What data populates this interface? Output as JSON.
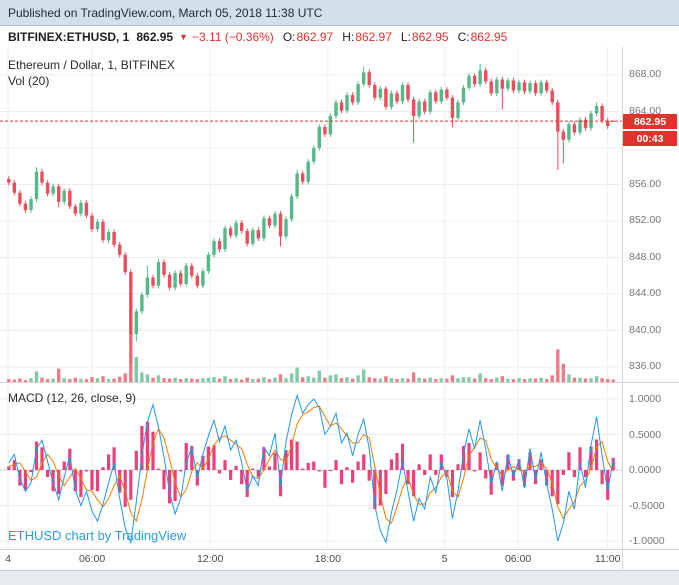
{
  "banner": {
    "text": "Published on TradingView.com, March 05, 2018 11:38 UTC"
  },
  "symbol_bar": {
    "symbol": "BITFINEX:ETHUSD, 1",
    "last": "862.95",
    "direction_icon": "▼",
    "change": "−3.11 (−0.36%)",
    "ohlc": [
      {
        "label": "O:",
        "value": "862.97"
      },
      {
        "label": "H:",
        "value": "862.97"
      },
      {
        "label": "L:",
        "value": "862.95"
      },
      {
        "label": "C:",
        "value": "862.95"
      }
    ]
  },
  "legend": {
    "title": "Ethereum / Dollar, 1, BITFINEX",
    "volume": "Vol (20)"
  },
  "macd_label": "MACD (12, 26, close, 9)",
  "watermark": "ETHUSD chart by TradingView",
  "price_axis": {
    "last_price": "862.95",
    "countdown": "00:43",
    "tick_labels": [
      {
        "v": 868,
        "t": "868.00"
      },
      {
        "v": 864,
        "t": "864.00"
      },
      {
        "v": 856,
        "t": "856.00"
      },
      {
        "v": 852,
        "t": "852.00"
      },
      {
        "v": 848,
        "t": "848.00"
      },
      {
        "v": 844,
        "t": "844.00"
      },
      {
        "v": 840,
        "t": "840.00"
      },
      {
        "v": 836,
        "t": "836.00"
      }
    ]
  },
  "macd_axis": [
    {
      "v": 1.0,
      "t": "1.0000"
    },
    {
      "v": 0.5,
      "t": "0.5000"
    },
    {
      "v": 0.0,
      "t": "0.0000"
    },
    {
      "v": -0.5,
      "t": "-0.5000"
    },
    {
      "v": -1.0,
      "t": "-1.0000"
    }
  ],
  "time_axis": [
    {
      "label": "4",
      "f": 0.013
    },
    {
      "label": "06:00",
      "f": 0.148
    },
    {
      "label": "12:00",
      "f": 0.338
    },
    {
      "label": "18:00",
      "f": 0.527
    },
    {
      "label": "5",
      "f": 0.715
    },
    {
      "label": "06:00",
      "f": 0.833
    },
    {
      "label": "11:00",
      "f": 0.977
    }
  ],
  "colors": {
    "up": "#53b987",
    "down": "#eb4d5c",
    "grid": "#ececec",
    "accent_red": "#e0332c",
    "macd_line": "#2196f3",
    "signal_line": "#f57c00",
    "hist": "#e91e63",
    "zero_line": "#c0c0c0"
  },
  "chart_data": {
    "type": "candlestick",
    "title": "Ethereum / Dollar, 1, BITFINEX",
    "exchange": "BITFINEX",
    "interval_minutes": 1,
    "current_price": 862.95,
    "price_range": [
      836,
      868
    ],
    "grid_prices": [
      868,
      864,
      860,
      856,
      852,
      848,
      844,
      840,
      836
    ],
    "macd_range": [
      -1,
      1
    ],
    "candles": {
      "o": [
        856.6,
        856.2,
        855.1,
        853.9,
        853.2,
        854.4,
        857.4,
        856.2,
        855.0,
        855.8,
        854.1,
        855.3,
        853.6,
        852.8,
        854.0,
        852.6,
        851.1,
        851.9,
        849.9,
        850.8,
        849.4,
        848.3,
        846.4,
        839.6,
        842.1,
        843.9,
        845.8,
        844.9,
        847.5,
        846.1,
        844.7,
        846.3,
        845.1,
        847.1,
        846.0,
        844.9,
        846.5,
        848.3,
        849.8,
        848.9,
        851.2,
        850.4,
        851.8,
        850.9,
        849.5,
        851.0,
        850.1,
        852.3,
        851.5,
        852.8,
        850.3,
        852.2,
        854.7,
        857.2,
        856.3,
        858.5,
        860.0,
        862.3,
        861.5,
        863.5,
        865.0,
        864.1,
        865.8,
        865.0,
        867.0,
        868.3,
        866.9,
        865.5,
        866.5,
        864.5,
        866.0,
        865.1,
        866.9,
        865.3,
        863.5,
        865.1,
        864.0,
        866.1,
        865.1,
        866.4,
        865.5,
        863.3,
        865.0,
        866.6,
        867.9,
        867.0,
        868.5,
        867.3,
        866.0,
        867.5,
        866.5,
        867.4,
        866.3,
        867.2,
        866.2,
        867.1,
        866.0,
        867.2,
        866.3,
        865.0,
        861.8,
        860.9,
        862.6,
        861.7,
        863.1,
        862.2,
        863.8,
        864.6,
        863.0,
        862.97
      ],
      "h": [
        856.9,
        856.5,
        855.4,
        854.2,
        854.7,
        857.9,
        857.7,
        856.5,
        856.1,
        856.1,
        855.6,
        855.6,
        853.9,
        854.3,
        854.3,
        852.9,
        852.2,
        852.2,
        851.1,
        851.1,
        849.7,
        848.6,
        846.7,
        842.4,
        844.2,
        847.1,
        846.1,
        847.8,
        847.8,
        846.4,
        846.6,
        846.6,
        847.4,
        847.4,
        846.3,
        846.8,
        848.6,
        850.1,
        850.1,
        851.5,
        851.5,
        852.1,
        852.1,
        851.2,
        851.3,
        851.3,
        852.6,
        852.6,
        853.1,
        853.1,
        852.5,
        855.0,
        857.6,
        857.5,
        858.8,
        860.3,
        862.6,
        862.6,
        863.8,
        865.3,
        865.3,
        866.1,
        866.1,
        867.3,
        868.9,
        868.6,
        867.2,
        866.8,
        866.8,
        866.3,
        866.3,
        867.2,
        867.2,
        865.6,
        865.4,
        865.4,
        866.4,
        866.4,
        866.7,
        866.7,
        865.8,
        865.3,
        866.9,
        868.2,
        868.2,
        869.2,
        868.8,
        867.6,
        867.8,
        867.8,
        867.7,
        867.7,
        867.5,
        867.5,
        867.4,
        867.4,
        867.5,
        867.5,
        866.6,
        865.3,
        862.1,
        862.9,
        862.9,
        863.4,
        863.4,
        864.1,
        865.0,
        864.9,
        863.3,
        863.0
      ],
      "l": [
        855.9,
        854.8,
        853.6,
        852.9,
        852.9,
        854.1,
        855.9,
        854.7,
        854.7,
        853.5,
        853.8,
        853.3,
        852.5,
        852.5,
        852.3,
        850.8,
        850.8,
        849.6,
        849.6,
        849.1,
        848.0,
        846.1,
        836.3,
        838.8,
        841.8,
        843.6,
        844.6,
        844.6,
        845.8,
        844.4,
        844.4,
        844.8,
        844.8,
        845.7,
        844.6,
        844.6,
        846.2,
        848.0,
        848.6,
        848.6,
        850.1,
        850.1,
        850.6,
        849.2,
        849.2,
        849.8,
        849.8,
        851.2,
        851.2,
        849.2,
        850.0,
        851.9,
        854.4,
        856.0,
        856.0,
        858.2,
        859.7,
        861.2,
        861.2,
        863.2,
        863.8,
        863.8,
        864.7,
        864.7,
        866.7,
        866.6,
        865.2,
        865.2,
        864.2,
        864.2,
        864.8,
        864.8,
        865.0,
        860.6,
        863.2,
        863.7,
        863.7,
        864.8,
        864.8,
        865.2,
        862.3,
        863.0,
        864.7,
        866.3,
        866.7,
        866.7,
        867.0,
        865.7,
        865.7,
        864.2,
        866.2,
        866.0,
        866.0,
        865.9,
        865.9,
        865.7,
        865.7,
        866.0,
        864.7,
        857.6,
        858.3,
        860.6,
        861.4,
        861.4,
        861.9,
        861.9,
        863.5,
        862.7,
        862.1,
        862.9
      ],
      "c": [
        856.2,
        855.1,
        853.9,
        853.2,
        854.4,
        857.4,
        856.2,
        855.0,
        855.8,
        854.1,
        855.3,
        853.6,
        852.8,
        854.0,
        852.6,
        851.1,
        851.9,
        849.9,
        850.8,
        849.4,
        848.3,
        846.4,
        839.6,
        842.1,
        843.9,
        845.8,
        844.9,
        847.5,
        846.1,
        844.7,
        846.3,
        845.1,
        847.1,
        846.0,
        844.9,
        846.5,
        848.3,
        849.8,
        848.9,
        851.2,
        850.4,
        851.8,
        850.9,
        849.5,
        851.0,
        850.1,
        852.3,
        851.5,
        852.8,
        850.3,
        852.2,
        854.7,
        857.2,
        856.3,
        858.5,
        860.0,
        862.3,
        861.5,
        863.5,
        865.0,
        864.1,
        865.8,
        865.0,
        867.0,
        868.3,
        866.9,
        865.5,
        866.5,
        864.5,
        866.0,
        865.1,
        866.9,
        865.3,
        863.5,
        865.1,
        864.0,
        866.1,
        865.1,
        866.4,
        865.5,
        863.3,
        865.0,
        866.6,
        867.9,
        867.0,
        868.5,
        867.3,
        866.0,
        867.5,
        866.5,
        867.4,
        866.3,
        867.2,
        866.2,
        867.1,
        866.0,
        867.2,
        866.3,
        865.0,
        861.8,
        860.9,
        862.6,
        861.7,
        863.1,
        862.2,
        863.8,
        864.6,
        863.0,
        862.4,
        862.95
      ],
      "v": [
        6,
        5,
        7,
        4,
        8,
        22,
        9,
        6,
        7,
        28,
        8,
        6,
        9,
        7,
        6,
        10,
        8,
        12,
        6,
        7,
        11,
        18,
        100,
        52,
        20,
        16,
        9,
        14,
        8,
        7,
        9,
        6,
        8,
        7,
        6,
        8,
        9,
        10,
        7,
        12,
        6,
        8,
        5,
        9,
        6,
        7,
        10,
        6,
        9,
        16,
        8,
        18,
        30,
        10,
        12,
        9,
        24,
        9,
        14,
        16,
        8,
        10,
        7,
        14,
        26,
        10,
        8,
        7,
        12,
        8,
        6,
        8,
        7,
        20,
        9,
        7,
        9,
        6,
        8,
        7,
        14,
        8,
        10,
        10,
        7,
        18,
        8,
        6,
        9,
        12,
        7,
        6,
        8,
        6,
        8,
        7,
        9,
        6,
        14,
        68,
        38,
        16,
        9,
        9,
        7,
        8,
        12,
        8,
        6,
        5
      ]
    },
    "indicators": {
      "macd": {
        "macd": [
          0.1,
          0.22,
          -0.12,
          -0.3,
          -0.18,
          0.3,
          0.42,
          0.12,
          -0.18,
          -0.42,
          -0.1,
          0.2,
          -0.28,
          -0.5,
          -0.3,
          -0.58,
          -0.72,
          -0.48,
          -0.18,
          0.1,
          -0.4,
          -0.82,
          -1.02,
          -0.45,
          0.2,
          0.68,
          0.92,
          0.6,
          0.18,
          -0.32,
          -0.62,
          -0.4,
          0.1,
          0.32,
          -0.12,
          0.22,
          0.48,
          0.7,
          0.4,
          0.62,
          0.28,
          0.42,
          0.1,
          -0.3,
          -0.08,
          -0.22,
          0.32,
          0.2,
          0.52,
          -0.22,
          0.4,
          0.78,
          1.05,
          0.8,
          0.92,
          1.0,
          0.88,
          0.5,
          0.62,
          0.8,
          0.38,
          0.52,
          0.2,
          0.5,
          0.72,
          0.3,
          -0.5,
          -0.85,
          -1.02,
          -0.6,
          -0.28,
          0.12,
          -0.3,
          -0.72,
          -0.4,
          -0.55,
          -0.1,
          -0.32,
          0.12,
          -0.12,
          -0.68,
          -0.3,
          0.22,
          0.58,
          0.3,
          0.7,
          0.3,
          -0.2,
          0.12,
          -0.3,
          0.22,
          -0.1,
          0.15,
          -0.25,
          0.3,
          -0.15,
          0.25,
          -0.2,
          -0.55,
          -1.0,
          -0.75,
          -0.3,
          -0.55,
          0.1,
          -0.25,
          0.35,
          0.75,
          0.2,
          -0.3,
          0.15
        ],
        "signal": [
          0.05,
          0.08,
          0.1,
          -0.02,
          -0.15,
          -0.1,
          0.1,
          0.22,
          0.12,
          -0.08,
          -0.22,
          -0.1,
          0.02,
          -0.12,
          -0.28,
          -0.3,
          -0.42,
          -0.52,
          -0.4,
          -0.22,
          -0.08,
          -0.3,
          -0.6,
          -0.72,
          -0.42,
          0.0,
          0.38,
          0.58,
          0.45,
          0.15,
          -0.18,
          -0.38,
          -0.28,
          -0.02,
          0.1,
          0.02,
          0.15,
          0.35,
          0.45,
          0.48,
          0.42,
          0.36,
          0.3,
          0.08,
          -0.1,
          -0.12,
          0.0,
          0.15,
          0.28,
          0.15,
          0.12,
          0.35,
          0.65,
          0.78,
          0.82,
          0.88,
          0.9,
          0.75,
          0.62,
          0.66,
          0.58,
          0.48,
          0.38,
          0.38,
          0.5,
          0.45,
          0.05,
          -0.35,
          -0.68,
          -0.75,
          -0.52,
          -0.25,
          -0.1,
          -0.35,
          -0.48,
          -0.48,
          -0.32,
          -0.25,
          -0.1,
          -0.02,
          -0.3,
          -0.38,
          -0.12,
          0.2,
          0.32,
          0.45,
          0.42,
          0.15,
          0.02,
          -0.08,
          0.0,
          0.05,
          0.0,
          -0.02,
          0.05,
          0.05,
          0.1,
          0.02,
          -0.18,
          -0.52,
          -0.68,
          -0.55,
          -0.45,
          -0.22,
          -0.15,
          0.02,
          0.32,
          0.4,
          0.12,
          -0.02
        ]
      }
    }
  }
}
